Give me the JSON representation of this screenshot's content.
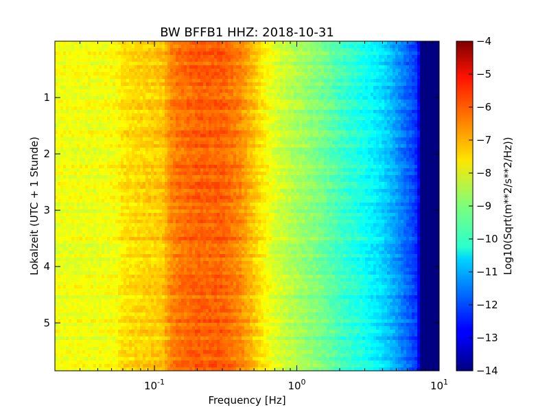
{
  "chart_data": {
    "type": "heatmap",
    "title": "BW BFFB1 HHZ: 2018-10-31",
    "xlabel": "Frequency [Hz]",
    "ylabel": "Lokalzeit (UTC + 1 Stunde)",
    "x_scale": "log",
    "xlim": [
      0.02,
      10
    ],
    "ylim": [
      0,
      5.85
    ],
    "y_inverted": true,
    "x_ticks": [
      {
        "value": 0.1,
        "base": "10",
        "exp": "-1"
      },
      {
        "value": 1,
        "base": "10",
        "exp": "0"
      },
      {
        "value": 10,
        "base": "10",
        "exp": "1"
      }
    ],
    "y_ticks": [
      {
        "value": 1,
        "label": "1"
      },
      {
        "value": 2,
        "label": "2"
      },
      {
        "value": 3,
        "label": "3"
      },
      {
        "value": 4,
        "label": "4"
      },
      {
        "value": 5,
        "label": "5"
      }
    ],
    "colorbar": {
      "label": "Log10(Sqrt(m**2/s**2/Hz))",
      "colormap": "jet",
      "range": [
        -14,
        -4
      ],
      "ticks": [
        {
          "value": -4,
          "label": "−4"
        },
        {
          "value": -5,
          "label": "−5"
        },
        {
          "value": -6,
          "label": "−6"
        },
        {
          "value": -7,
          "label": "−7"
        },
        {
          "value": -8,
          "label": "−8"
        },
        {
          "value": -9,
          "label": "−9"
        },
        {
          "value": -10,
          "label": "−10"
        },
        {
          "value": -11,
          "label": "−11"
        },
        {
          "value": -12,
          "label": "−12"
        },
        {
          "value": -13,
          "label": "−13"
        },
        {
          "value": -14,
          "label": "−14"
        }
      ]
    },
    "spectrum_profile": {
      "frequencies_hz": [
        0.02,
        0.04,
        0.055,
        0.06,
        0.09,
        0.115,
        0.13,
        0.15,
        0.2,
        0.3,
        0.4,
        0.5,
        0.6,
        0.7,
        1.0,
        1.5,
        2.0,
        3.0,
        4.0,
        5.0,
        6.0,
        7.0,
        7.5,
        10.0
      ],
      "median_values": [
        -7.9,
        -7.9,
        -7.8,
        -7.5,
        -7.3,
        -7.2,
        -6.6,
        -6.4,
        -6.2,
        -6.2,
        -6.6,
        -7.2,
        -7.7,
        -8.1,
        -8.6,
        -9.1,
        -9.6,
        -10.1,
        -10.6,
        -11.2,
        -11.8,
        -12.3,
        -14.0,
        -14.0
      ]
    }
  }
}
